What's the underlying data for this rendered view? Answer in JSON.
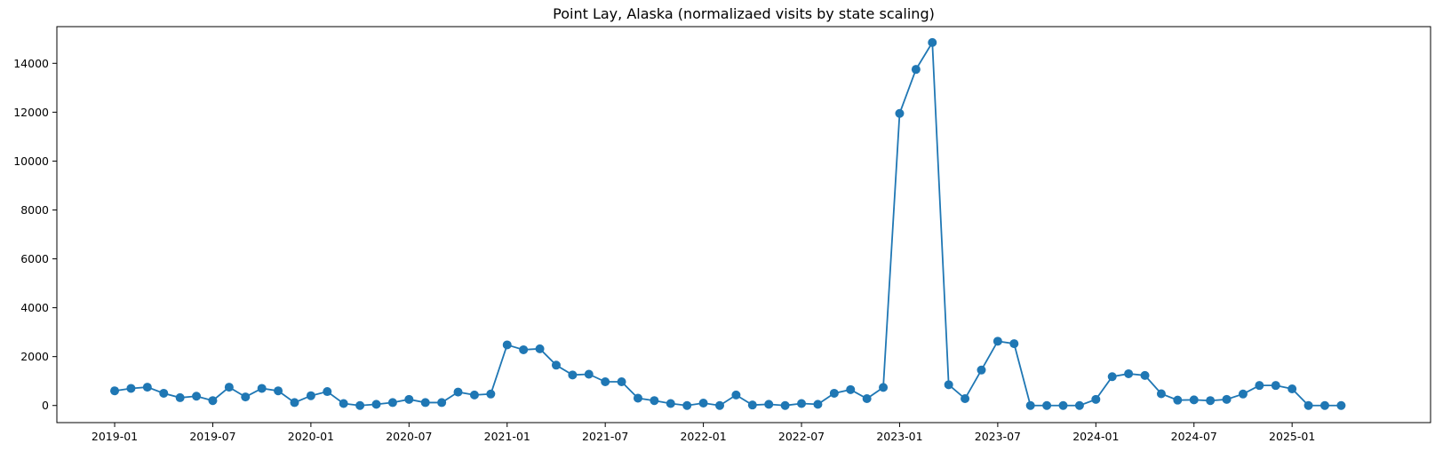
{
  "chart_data": {
    "type": "line",
    "title": "Point Lay, Alaska (normalizaed visits by state scaling)",
    "xlabel": "",
    "ylabel": "",
    "color": "#1f77b4",
    "marker": "circle",
    "grid": false,
    "xlim": [
      "2018-09-15",
      "2025-09-15"
    ],
    "ylim": [
      -700,
      15500
    ],
    "xticks": [
      "2019-01",
      "2019-07",
      "2020-01",
      "2020-07",
      "2021-01",
      "2021-07",
      "2022-01",
      "2022-07",
      "2023-01",
      "2023-07",
      "2024-01",
      "2024-07",
      "2025-01"
    ],
    "yticks": [
      0,
      2000,
      4000,
      6000,
      8000,
      10000,
      12000,
      14000
    ],
    "series": [
      {
        "name": "",
        "x": [
          "2019-01",
          "2019-02",
          "2019-03",
          "2019-04",
          "2019-05",
          "2019-06",
          "2019-07",
          "2019-08",
          "2019-09",
          "2019-10",
          "2019-11",
          "2019-12",
          "2020-01",
          "2020-02",
          "2020-03",
          "2020-04",
          "2020-05",
          "2020-06",
          "2020-07",
          "2020-08",
          "2020-09",
          "2020-10",
          "2020-11",
          "2020-12",
          "2021-01",
          "2021-02",
          "2021-03",
          "2021-04",
          "2021-05",
          "2021-06",
          "2021-07",
          "2021-08",
          "2021-09",
          "2021-10",
          "2021-11",
          "2021-12",
          "2022-01",
          "2022-02",
          "2022-03",
          "2022-04",
          "2022-05",
          "2022-06",
          "2022-07",
          "2022-08",
          "2022-09",
          "2022-10",
          "2022-11",
          "2022-12",
          "2023-01",
          "2023-02",
          "2023-03",
          "2023-04",
          "2023-05",
          "2023-06",
          "2023-07",
          "2023-08",
          "2023-09",
          "2023-10",
          "2023-11",
          "2023-12",
          "2024-01",
          "2024-02",
          "2024-03",
          "2024-04",
          "2024-05",
          "2024-06",
          "2024-07",
          "2024-08",
          "2024-09",
          "2024-10",
          "2024-11",
          "2024-12",
          "2025-01",
          "2025-02",
          "2025-03",
          "2025-04"
        ],
        "values": [
          600,
          700,
          750,
          500,
          320,
          380,
          200,
          750,
          350,
          700,
          600,
          120,
          400,
          570,
          80,
          0,
          50,
          120,
          250,
          120,
          120,
          550,
          430,
          470,
          2480,
          2280,
          2320,
          1650,
          1250,
          1280,
          970,
          970,
          300,
          200,
          80,
          0,
          100,
          0,
          430,
          20,
          50,
          0,
          80,
          50,
          500,
          650,
          280,
          740,
          11950,
          13750,
          14850,
          850,
          280,
          1450,
          2630,
          2530,
          0,
          0,
          0,
          0,
          250,
          1180,
          1300,
          1230,
          480,
          220,
          230,
          200,
          250,
          470,
          820,
          820,
          680,
          0,
          0,
          0
        ]
      }
    ]
  }
}
